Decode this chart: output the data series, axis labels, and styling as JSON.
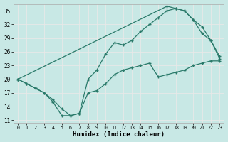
{
  "xlabel": "Humidex (Indice chaleur)",
  "ylabel": "",
  "xlim": [
    -0.5,
    23.5
  ],
  "ylim": [
    10.5,
    36.5
  ],
  "xticks": [
    0,
    1,
    2,
    3,
    4,
    5,
    6,
    7,
    8,
    9,
    10,
    11,
    12,
    13,
    14,
    15,
    16,
    17,
    18,
    19,
    20,
    21,
    22,
    23
  ],
  "yticks": [
    11,
    14,
    17,
    20,
    23,
    26,
    29,
    32,
    35
  ],
  "bg_color": "#c8e8e5",
  "grid_color": "#e8e8e8",
  "line_color": "#2a7a6a",
  "line1_x": [
    0,
    1,
    2,
    3,
    4,
    5,
    6,
    7,
    8,
    9,
    10,
    11,
    12,
    13,
    14,
    15,
    16,
    17,
    18,
    19,
    20,
    21,
    22,
    23
  ],
  "line1_y": [
    20,
    19,
    18,
    17,
    15,
    12,
    12,
    12.5,
    17,
    17.5,
    19,
    21,
    22,
    22.5,
    23,
    23.5,
    20.5,
    21,
    21.5,
    22,
    23,
    23.5,
    24,
    24
  ],
  "line2_x": [
    0,
    1,
    2,
    3,
    4,
    5,
    6,
    7,
    8,
    9,
    10,
    11,
    12,
    13,
    14,
    15,
    16,
    17,
    18,
    19,
    20,
    21,
    22,
    23
  ],
  "line2_y": [
    20,
    19,
    18,
    17,
    15.5,
    13.5,
    12,
    12.5,
    20,
    22,
    25.5,
    28,
    27.5,
    28.5,
    30.5,
    32,
    33.5,
    35,
    35.5,
    35,
    33,
    31.5,
    28.5,
    25
  ],
  "line3_x": [
    0,
    17,
    18,
    19,
    20,
    21,
    22,
    23
  ],
  "line3_y": [
    20,
    36,
    35.5,
    35,
    33,
    30,
    28.5,
    24.5
  ]
}
